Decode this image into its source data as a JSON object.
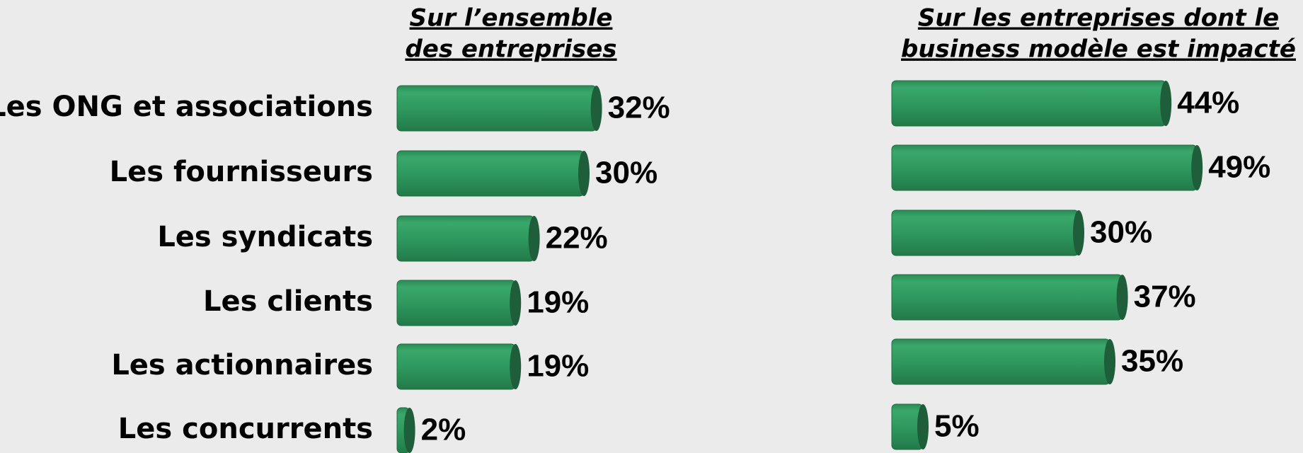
{
  "chart_data": [
    {
      "type": "bar",
      "title": [
        "Sur l’ensemble",
        "des entreprises"
      ],
      "categories": [
        "Les ONG et associations",
        "Les fournisseurs",
        "Les syndicats",
        "Les clients",
        "Les actionnaires",
        "Les concurrents"
      ],
      "values": [
        32,
        30,
        22,
        19,
        19,
        2
      ],
      "value_labels": [
        "32%",
        "30%",
        "22%",
        "19%",
        "19%",
        "2%"
      ],
      "color": "#2e9a5e"
    },
    {
      "type": "bar",
      "title": [
        "Sur les entreprises dont le",
        "business modèle est impacté"
      ],
      "values": [
        44,
        49,
        30,
        37,
        35,
        5
      ],
      "value_labels": [
        "44%",
        "49%",
        "30%",
        "37%",
        "35%",
        "5%"
      ],
      "color": "#2e9a5e"
    }
  ]
}
